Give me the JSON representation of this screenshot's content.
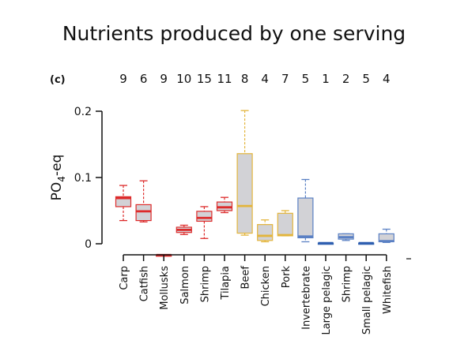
{
  "slide": {
    "title": "Nutrients produced by one serving"
  },
  "chart_data": {
    "type": "boxplot",
    "panel_label": "(c)",
    "ylabel_main": "PO",
    "ylabel_sub": "4",
    "ylabel_suffix": "-eq",
    "ylim": [
      0,
      0.2
    ],
    "yticks": [
      "0",
      "0.1",
      "0.2"
    ],
    "categories": [
      "Carp",
      "Catfish",
      "Mollusks",
      "Salmon",
      "Shrimp",
      "Tilapia",
      "Beef",
      "Chicken",
      "Pork",
      "Invertebrate",
      "Large pelagic",
      "Shrimp",
      "Small pelagic",
      "Whitefish"
    ],
    "sample_sizes": [
      "9",
      "6",
      "9",
      "10",
      "15",
      "11",
      "8",
      "4",
      "7",
      "5",
      "1",
      "2",
      "5",
      "4"
    ],
    "colors": [
      "#dd2b2b",
      "#dd2b2b",
      "#dd2b2b",
      "#dd2b2b",
      "#dd2b2b",
      "#dd2b2b",
      "#e3b53c",
      "#e3b53c",
      "#e3b53c",
      "#5a80c4",
      "#2f5fb0",
      "#5a80c4",
      "#2f5fb0",
      "#5a80c4"
    ],
    "box_fill": "#d2d2d6",
    "boxes": [
      {
        "min": 0.035,
        "q1": 0.056,
        "median": 0.069,
        "q3": 0.071,
        "max": 0.088
      },
      {
        "min": 0.033,
        "q1": 0.035,
        "median": 0.049,
        "q3": 0.059,
        "max": 0.095
      },
      {
        "min": -0.017,
        "q1": -0.017,
        "median": -0.017,
        "q3": -0.017,
        "max": -0.017
      },
      {
        "min": 0.014,
        "q1": 0.017,
        "median": 0.021,
        "q3": 0.025,
        "max": 0.028
      },
      {
        "min": 0.008,
        "q1": 0.034,
        "median": 0.039,
        "q3": 0.049,
        "max": 0.056
      },
      {
        "min": 0.047,
        "q1": 0.05,
        "median": 0.055,
        "q3": 0.063,
        "max": 0.07
      },
      {
        "min": 0.013,
        "q1": 0.016,
        "median": 0.057,
        "q3": 0.136,
        "max": 0.201
      },
      {
        "min": 0.003,
        "q1": 0.005,
        "median": 0.012,
        "q3": 0.029,
        "max": 0.036
      },
      {
        "min": 0.012,
        "q1": 0.012,
        "median": 0.013,
        "q3": 0.046,
        "max": 0.05
      },
      {
        "min": 0.003,
        "q1": 0.009,
        "median": 0.011,
        "q3": 0.069,
        "max": 0.097
      },
      {
        "min": 0.001,
        "q1": 0.001,
        "median": 0.001,
        "q3": 0.001,
        "max": 0.001
      },
      {
        "min": 0.005,
        "q1": 0.007,
        "median": 0.01,
        "q3": 0.015,
        "max": 0.015
      },
      {
        "min": 0.001,
        "q1": 0.001,
        "median": 0.001,
        "q3": 0.001,
        "max": 0.001
      },
      {
        "min": 0.002,
        "q1": 0.003,
        "median": 0.004,
        "q3": 0.015,
        "max": 0.022
      }
    ],
    "grid": false
  }
}
